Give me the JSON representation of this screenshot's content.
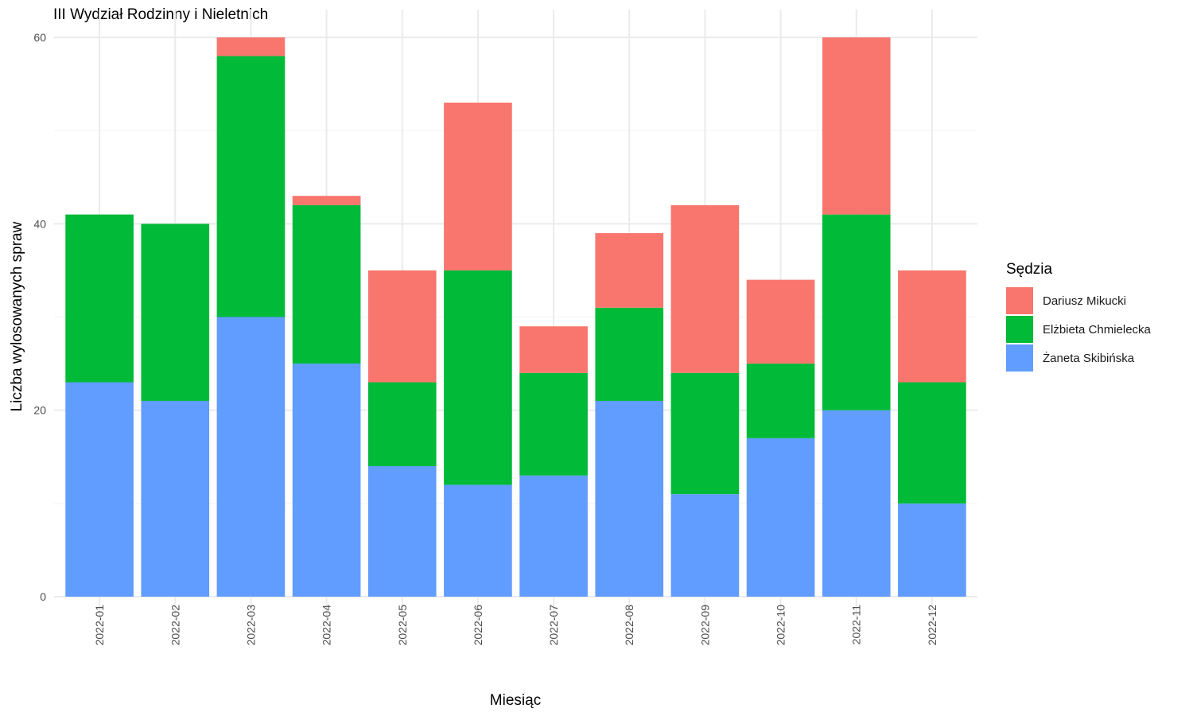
{
  "chart_data": {
    "type": "bar",
    "stacked": true,
    "title": "III Wydział Rodzinny i Nieletnich",
    "xlabel": "Miesiąc",
    "ylabel": "Liczba wylosowanych spraw",
    "ylim": [
      0,
      60
    ],
    "yticks": [
      "0",
      "20",
      "40",
      "60"
    ],
    "grid": true,
    "legend_title": "Sędzia",
    "legend_position": "right",
    "categories": [
      "2022-01",
      "2022-02",
      "2022-03",
      "2022-04",
      "2022-05",
      "2022-06",
      "2022-07",
      "2022-08",
      "2022-09",
      "2022-10",
      "2022-11",
      "2022-12"
    ],
    "series": [
      {
        "name": "Żaneta Skibińska",
        "color": "#619CFF",
        "values": [
          23,
          21,
          30,
          25,
          14,
          12,
          13,
          21,
          11,
          17,
          20,
          10
        ]
      },
      {
        "name": "Elżbieta Chmielecka",
        "color": "#00BA38",
        "values": [
          18,
          19,
          28,
          17,
          9,
          23,
          11,
          10,
          13,
          8,
          21,
          13
        ]
      },
      {
        "name": "Dariusz Mikucki",
        "color": "#F8766D",
        "values": [
          0,
          0,
          2,
          1,
          12,
          18,
          5,
          8,
          18,
          9,
          19,
          12
        ]
      }
    ],
    "legend_order": [
      2,
      1,
      0
    ]
  }
}
